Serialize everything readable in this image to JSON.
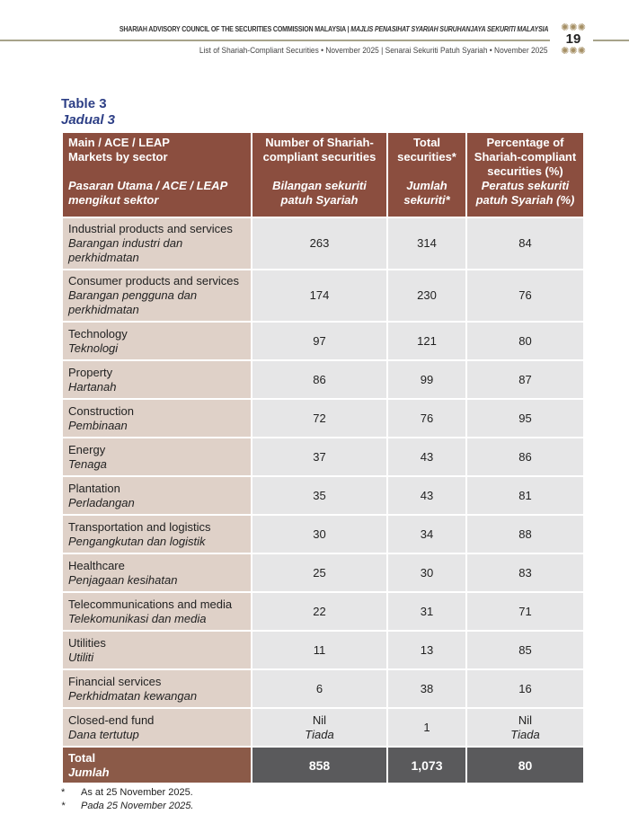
{
  "header": {
    "org_en": "SHARIAH ADVISORY COUNCIL OF THE SECURITIES COMMISSION MALAYSIA",
    "separator": "|",
    "org_ms": "MAJLIS PENASIHAT SYARIAH SURUHANJAYA SEKURITI MALAYSIA",
    "subtitle": "List of Shariah-Compliant Securities • November 2025 |  Senarai Sekuriti Patuh Syariah • November 2025",
    "page_number": "19"
  },
  "title": {
    "en": "Table 3",
    "ms": "Jadual 3"
  },
  "columns": [
    {
      "en": "Main / ACE / LEAP Markets by sector",
      "ms": "Pasaran Utama / ACE / LEAP mengikut sektor"
    },
    {
      "en": "Number of Shariah-compliant securities",
      "ms": "Bilangan sekuriti patuh Syariah"
    },
    {
      "en": "Total securities*",
      "ms": "Jumlah sekuriti*"
    },
    {
      "en": "Percentage of Shariah-compliant securities (%)",
      "ms": "Peratus sekuriti patuh Syariah (%)"
    }
  ],
  "rows": [
    {
      "en": "Industrial products and services",
      "ms": "Barangan industri dan perkhidmatan",
      "compliant": "263",
      "total": "314",
      "pct": "84"
    },
    {
      "en": "Consumer products and services",
      "ms": "Barangan pengguna dan perkhidmatan",
      "compliant": "174",
      "total": "230",
      "pct": "76"
    },
    {
      "en": "Technology",
      "ms": "Teknologi",
      "compliant": "97",
      "total": "121",
      "pct": "80"
    },
    {
      "en": "Property",
      "ms": "Hartanah",
      "compliant": "86",
      "total": "99",
      "pct": "87"
    },
    {
      "en": "Construction",
      "ms": "Pembinaan",
      "compliant": "72",
      "total": "76",
      "pct": "95"
    },
    {
      "en": "Energy",
      "ms": "Tenaga",
      "compliant": "37",
      "total": "43",
      "pct": "86"
    },
    {
      "en": "Plantation",
      "ms": "Perladangan",
      "compliant": "35",
      "total": "43",
      "pct": "81"
    },
    {
      "en": "Transportation and logistics",
      "ms": "Pengangkutan dan logistik",
      "compliant": "30",
      "total": "34",
      "pct": "88"
    },
    {
      "en": "Healthcare",
      "ms": "Penjagaan kesihatan",
      "compliant": "25",
      "total": "30",
      "pct": "83"
    },
    {
      "en": "Telecommunications and media",
      "ms": "Telekomunikasi dan media",
      "compliant": "22",
      "total": "31",
      "pct": "71"
    },
    {
      "en": "Utilities",
      "ms": "Utiliti",
      "compliant": "11",
      "total": "13",
      "pct": "85"
    },
    {
      "en": "Financial services",
      "ms": "Perkhidmatan kewangan",
      "compliant": "6",
      "total": "38",
      "pct": "16"
    },
    {
      "en": "Closed-end fund",
      "ms": "Dana tertutup",
      "compliant": "Nil",
      "compliant_ms": "Tiada",
      "total": "1",
      "pct": "Nil",
      "pct_ms": "Tiada"
    }
  ],
  "total": {
    "en": "Total",
    "ms": "Jumlah",
    "compliant": "858",
    "total": "1,073",
    "pct": "80"
  },
  "footnotes": [
    {
      "mark": "*",
      "text": "As at 25 November 2025."
    },
    {
      "mark": "*",
      "text": "Pada 25 November 2025."
    }
  ]
}
